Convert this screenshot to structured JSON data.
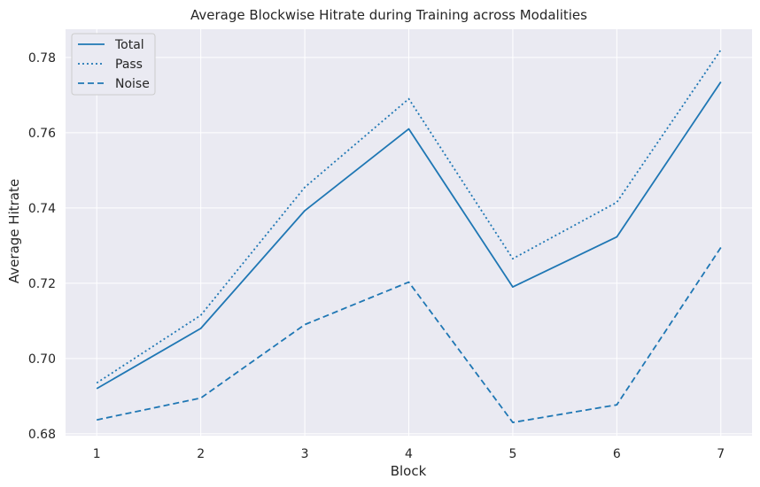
{
  "chart_data": {
    "type": "line",
    "title": "Average Blockwise Hitrate during Training across Modalities",
    "xlabel": "Block",
    "ylabel": "Average Hitrate",
    "x": [
      1,
      2,
      3,
      4,
      5,
      6,
      7
    ],
    "xticks": [
      "1",
      "2",
      "3",
      "4",
      "5",
      "6",
      "7"
    ],
    "yticks": [
      "0.68",
      "0.70",
      "0.72",
      "0.74",
      "0.76",
      "0.78"
    ],
    "xlim": [
      0.7,
      7.3
    ],
    "ylim": [
      0.6795,
      0.7875
    ],
    "grid": true,
    "legend_position": "top-left",
    "series": [
      {
        "name": "Total",
        "style": "solid",
        "color": "#1f77b4",
        "values": [
          0.692,
          0.708,
          0.7393,
          0.761,
          0.719,
          0.7323,
          0.7735
        ]
      },
      {
        "name": "Pass",
        "style": "dotted",
        "color": "#1f77b4",
        "values": [
          0.6935,
          0.7115,
          0.7455,
          0.769,
          0.7265,
          0.7415,
          0.782
        ]
      },
      {
        "name": "Noise",
        "style": "dashed",
        "color": "#1f77b4",
        "values": [
          0.6837,
          0.6895,
          0.709,
          0.7203,
          0.683,
          0.6877,
          0.7295
        ]
      }
    ]
  },
  "colors": {
    "plot_background": "#eaeaf2",
    "grid": "#ffffff",
    "line": "#1f77b4"
  }
}
